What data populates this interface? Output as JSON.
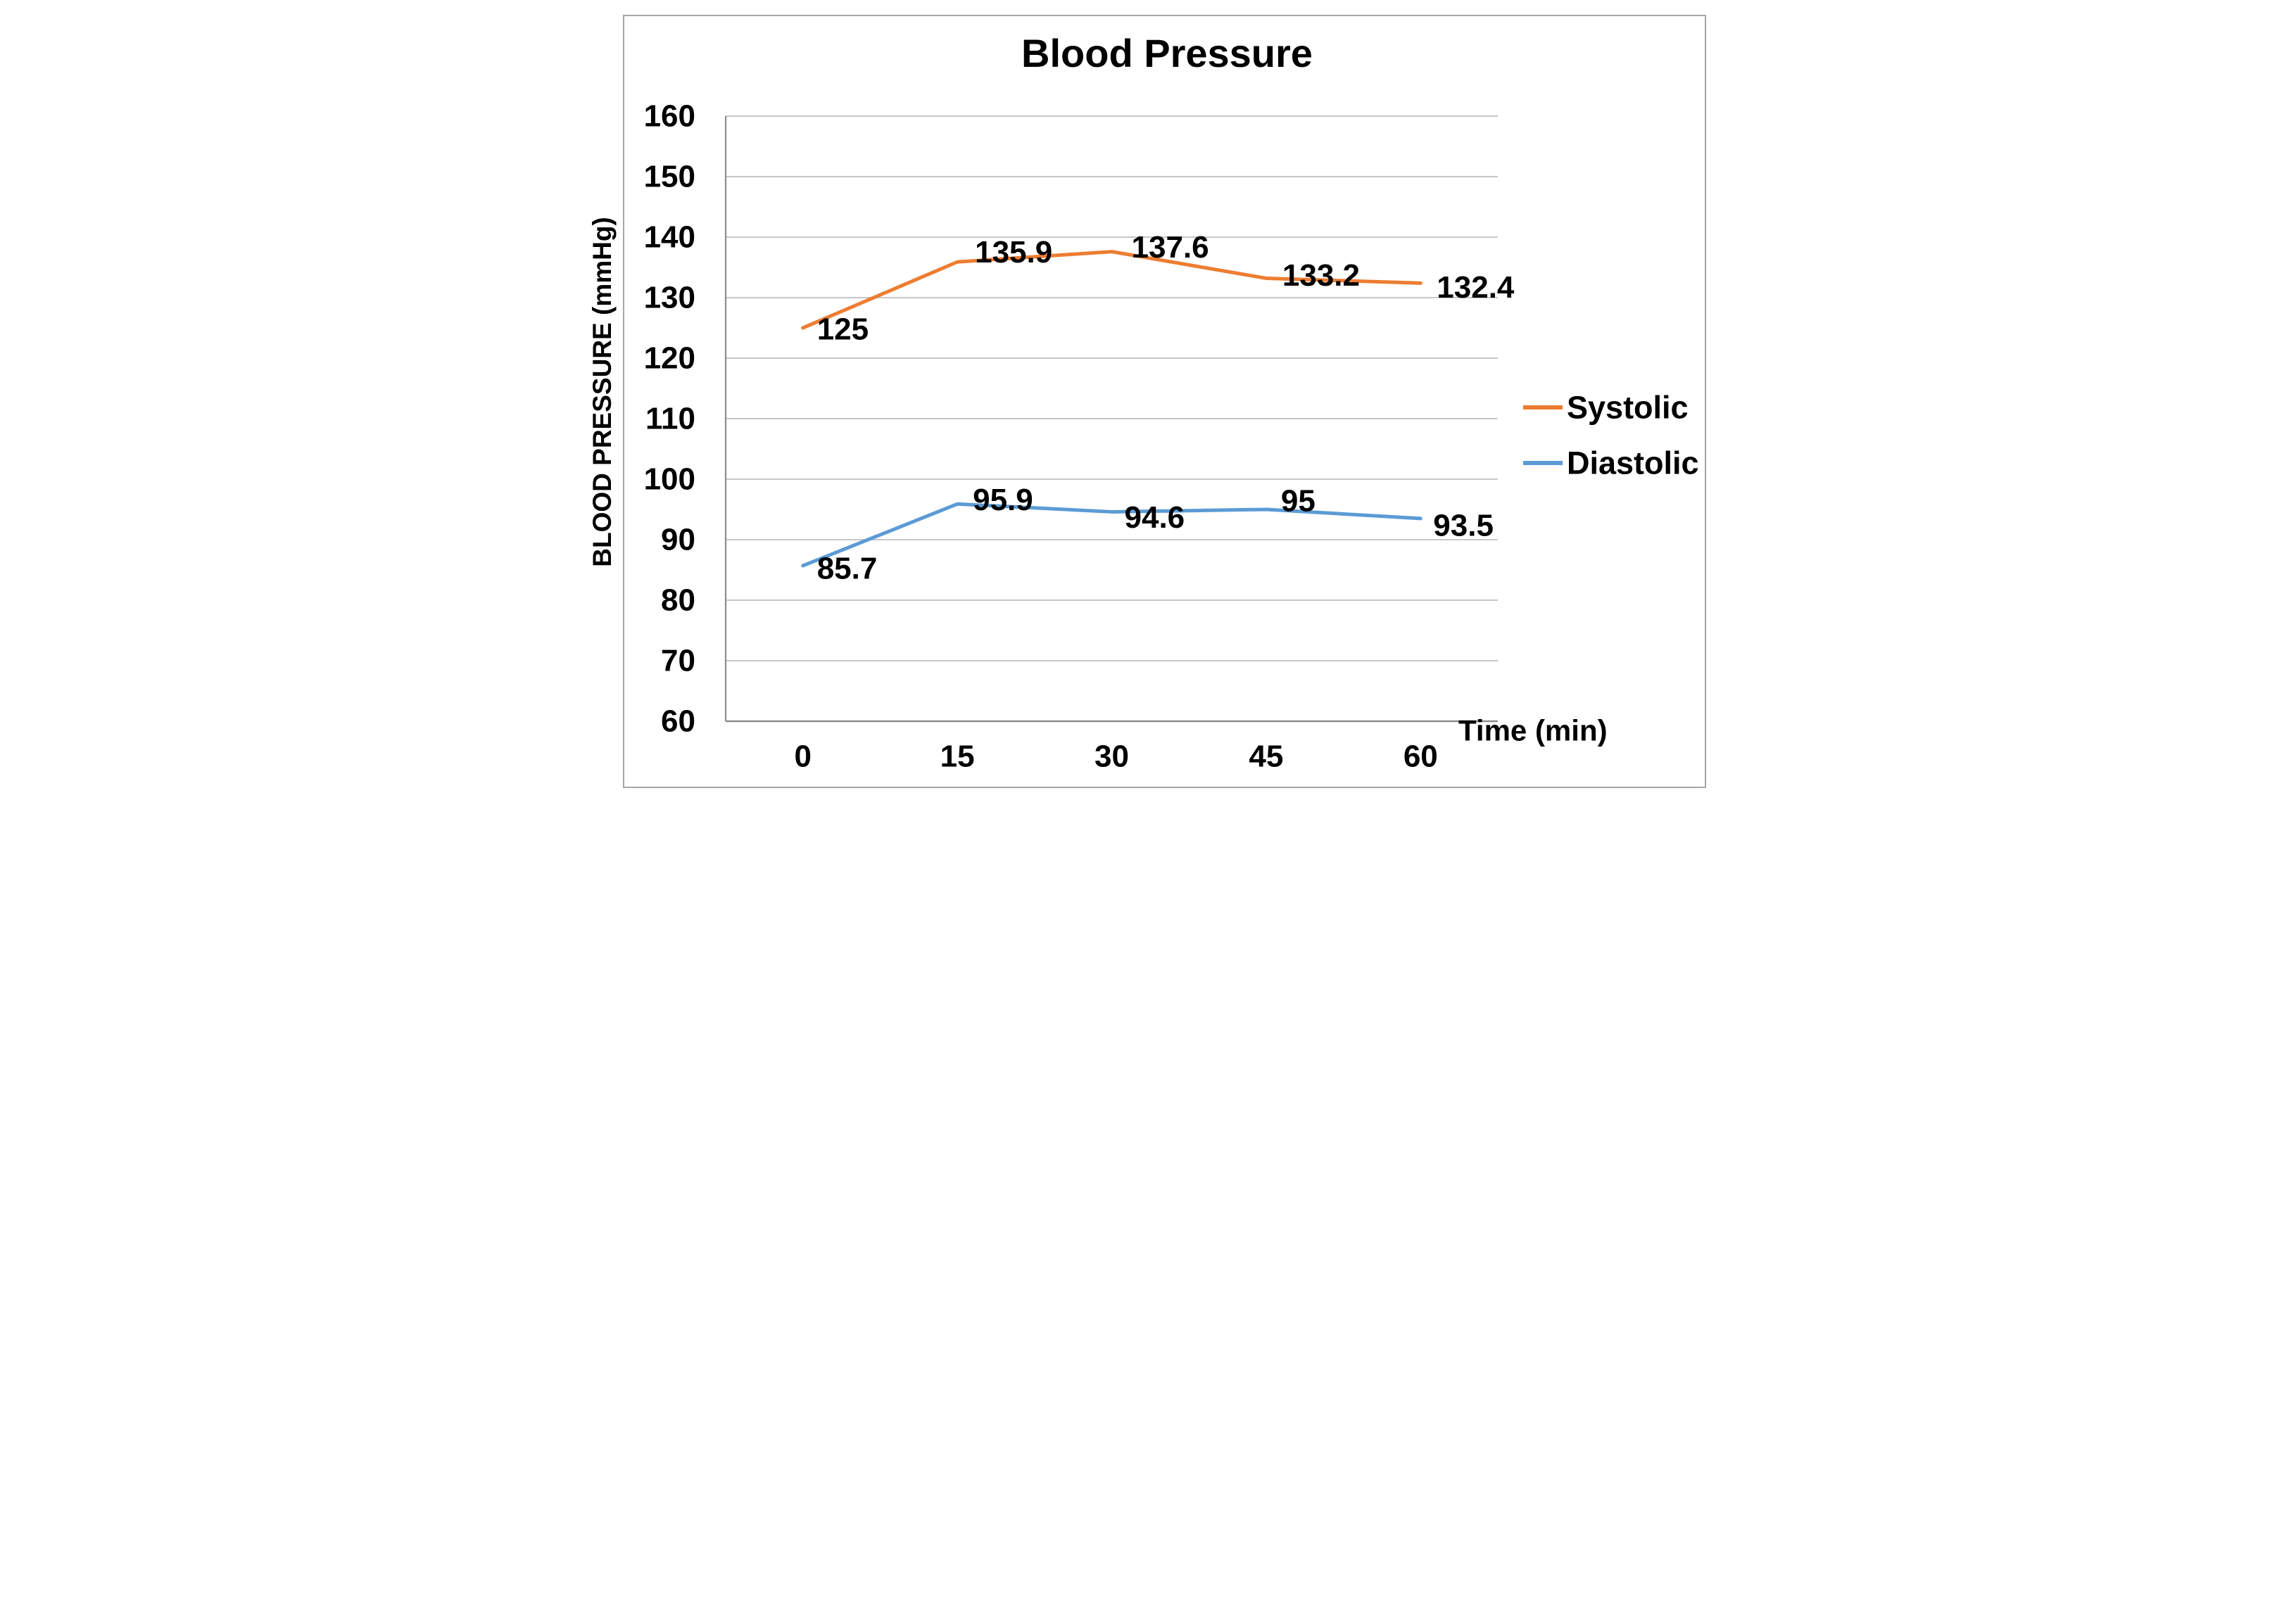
{
  "chart_data": {
    "type": "line",
    "title": "Blood Pressure",
    "xlabel": "Time (min)",
    "ylabel": "BLOOD PRESSURE (mmHg)",
    "categories": [
      0,
      15,
      30,
      45,
      60
    ],
    "xtick_labels": [
      "0",
      "15",
      "30",
      "45",
      "60"
    ],
    "ylim": [
      60,
      160
    ],
    "ytick_step": 10,
    "yticks": [
      60,
      70,
      80,
      90,
      100,
      110,
      120,
      130,
      140,
      150,
      160
    ],
    "grid": true,
    "legend_position": "right",
    "series": [
      {
        "name": "Systolic",
        "color": "#ED7D31",
        "values": [
          125,
          135.9,
          137.6,
          133.2,
          132.4
        ],
        "data_labels": [
          "125",
          "135.9",
          "137.6",
          "133.2",
          "132.4"
        ]
      },
      {
        "name": "Diastolic",
        "color": "#5B9BD5",
        "values": [
          85.7,
          95.9,
          94.6,
          95,
          93.5
        ],
        "data_labels": [
          "85.7",
          "95.9",
          "94.6",
          "95",
          "93.5"
        ]
      }
    ]
  },
  "colors": {
    "background": "#FFFFFF",
    "border": "#A6A6A6",
    "gridline": "#BFBFBF",
    "axis_line": "#8C8C8C",
    "text": "#000000"
  }
}
